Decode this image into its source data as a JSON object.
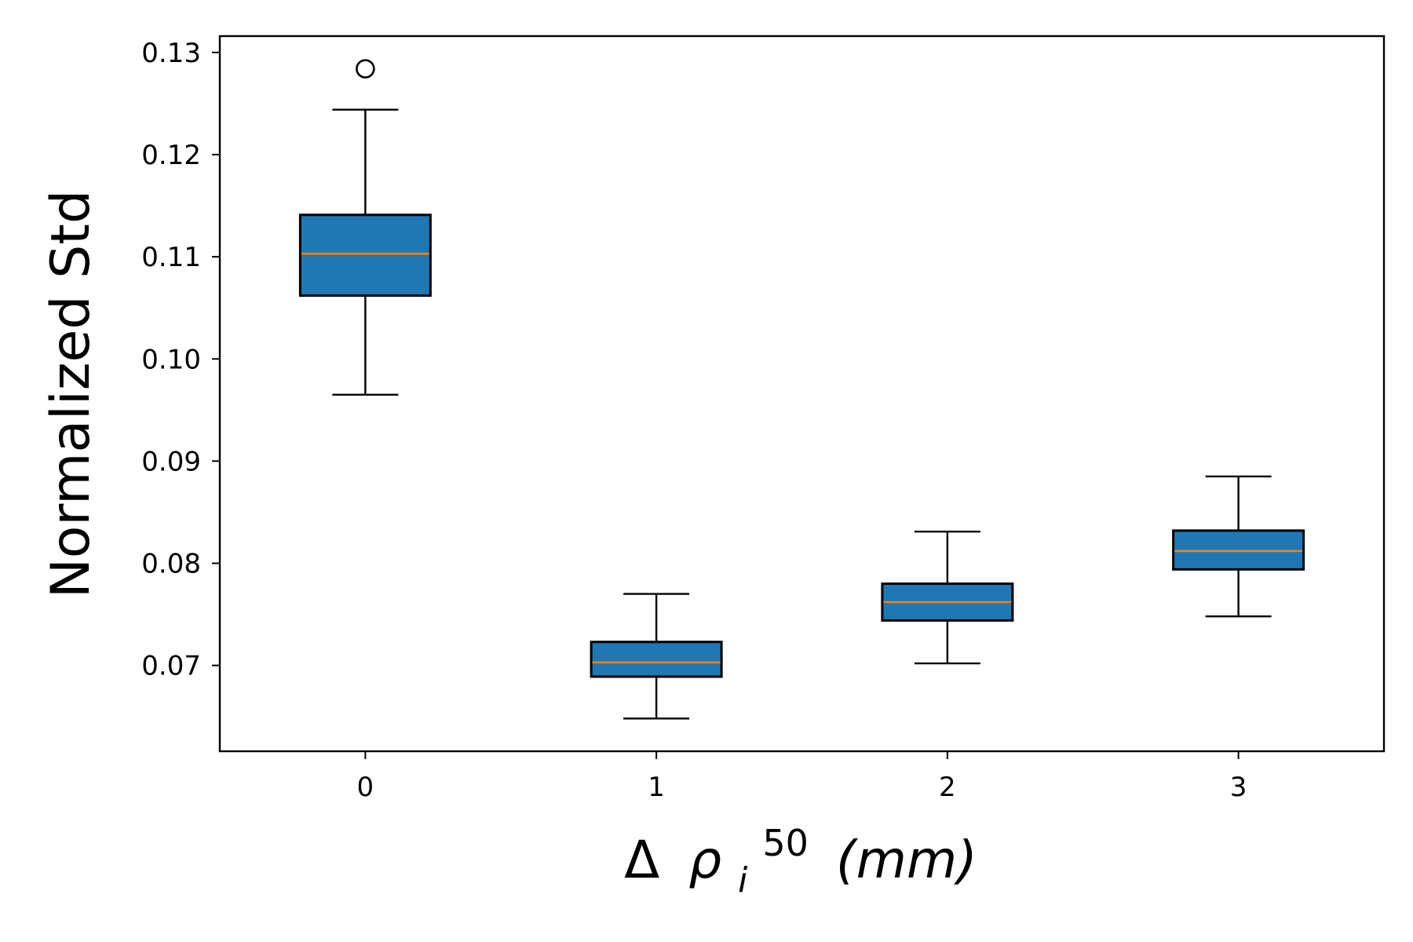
{
  "chart_data": {
    "type": "box",
    "ylabel": "Normalized Std",
    "xlabel": {
      "prefix": "Δ",
      "symbol": "ρ",
      "subscript": "i",
      "superscript": "50",
      "unit": "(mm)"
    },
    "ylim": [
      0.0616,
      0.1316
    ],
    "xlim": [
      -0.5,
      3.5
    ],
    "yticks": [
      0.07,
      0.08,
      0.09,
      0.1,
      0.11,
      0.12,
      0.13
    ],
    "ytick_labels": [
      "0.07",
      "0.08",
      "0.09",
      "0.10",
      "0.11",
      "0.12",
      "0.13"
    ],
    "grid": false,
    "box_color": "#1f77b4",
    "median_color": "#ff7f0e",
    "boxes": [
      {
        "x": 0,
        "label": "0",
        "whisker_low": 0.0965,
        "q1": 0.1062,
        "median": 0.1103,
        "q3": 0.1141,
        "whisker_high": 0.1244,
        "outliers": [
          0.1284
        ]
      },
      {
        "x": 1,
        "label": "1",
        "whisker_low": 0.0648,
        "q1": 0.0689,
        "median": 0.0703,
        "q3": 0.0723,
        "whisker_high": 0.077,
        "outliers": []
      },
      {
        "x": 2,
        "label": "2",
        "whisker_low": 0.0702,
        "q1": 0.0744,
        "median": 0.0762,
        "q3": 0.078,
        "whisker_high": 0.0831,
        "outliers": []
      },
      {
        "x": 3,
        "label": "3",
        "whisker_low": 0.0748,
        "q1": 0.0794,
        "median": 0.0812,
        "q3": 0.0832,
        "whisker_high": 0.0885,
        "outliers": []
      }
    ]
  }
}
